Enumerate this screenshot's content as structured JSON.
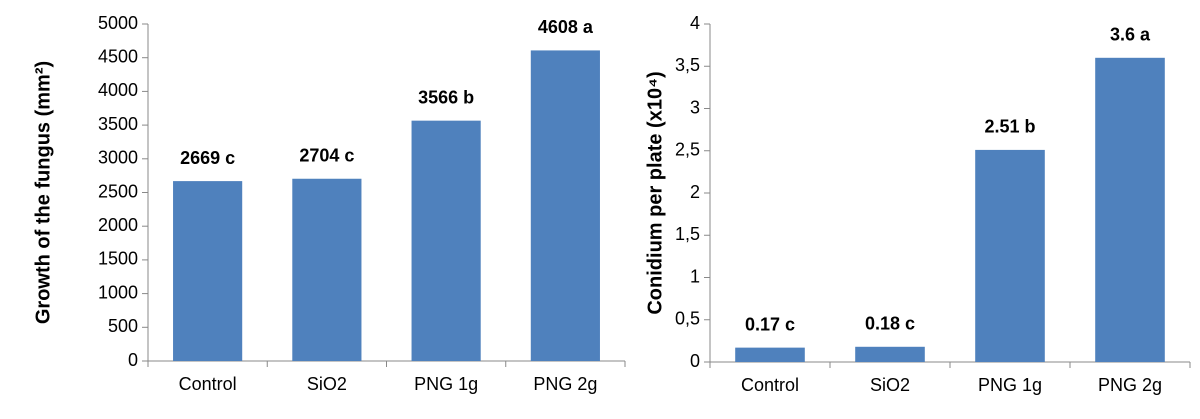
{
  "chart_data": [
    {
      "type": "bar",
      "ylabel": "Growth of the fungus (mm²)",
      "categories": [
        "Control",
        "SiO2",
        "PNG 1g",
        "PNG 2g"
      ],
      "values": [
        2669,
        2704,
        3566,
        4608
      ],
      "value_labels": [
        "2669 c",
        "2704 c",
        "3566 b",
        "4608 a"
      ],
      "color": "#4f81bd",
      "ylim": [
        0,
        5000
      ],
      "yticks": [
        0,
        500,
        1000,
        1500,
        2000,
        2500,
        3000,
        3500,
        4000,
        4500,
        5000
      ]
    },
    {
      "type": "bar",
      "ylabel": "Conidium per plate (x10⁴)",
      "categories": [
        "Control",
        "SiO2",
        "PNG 1g",
        "PNG 2g"
      ],
      "values": [
        0.17,
        0.18,
        2.51,
        3.6
      ],
      "value_labels": [
        "0.17 c",
        "0.18 c",
        "2.51 b",
        "3.6 a"
      ],
      "color": "#4f81bd",
      "ylim": [
        0,
        4
      ],
      "yticks": [
        0,
        {
          "value": 0.5,
          "label": "0,5"
        },
        1,
        {
          "value": 1.5,
          "label": "1,5"
        },
        2,
        {
          "value": 2.5,
          "label": "2,5"
        },
        3,
        {
          "value": 3.5,
          "label": "3,5"
        },
        4
      ]
    }
  ]
}
